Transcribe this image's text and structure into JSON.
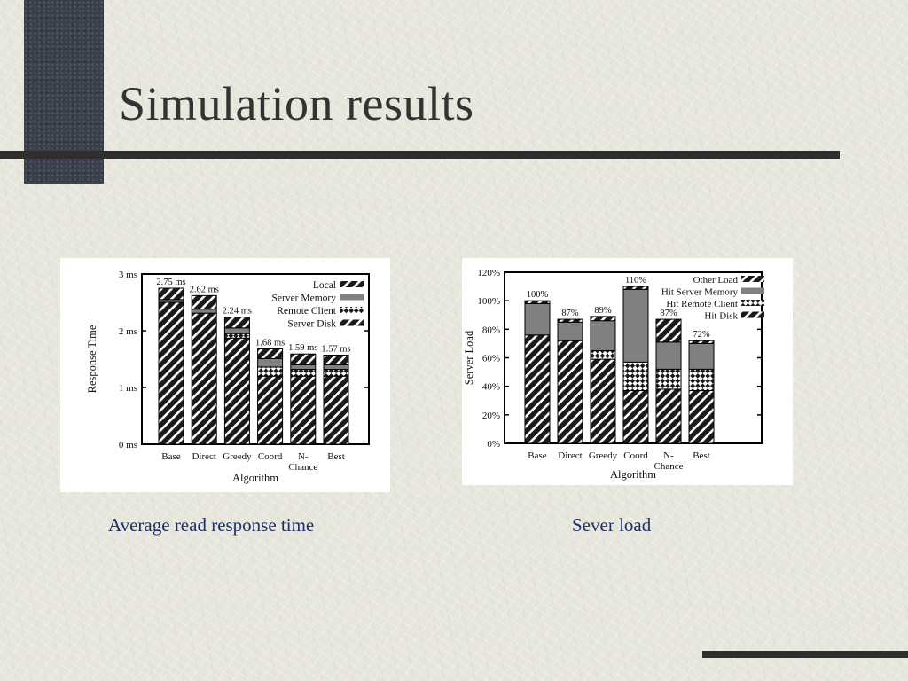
{
  "slide": {
    "title": "Simulation results",
    "caption_left": "Average read response time",
    "caption_right": "Sever load"
  },
  "chart_data": [
    {
      "type": "bar",
      "stacked": true,
      "ylabel": "Response Time",
      "xlabel": "Algorithm",
      "ylim": [
        0,
        3
      ],
      "yticks": [
        {
          "value": 0,
          "label": "0 ms"
        },
        {
          "value": 1,
          "label": "1 ms"
        },
        {
          "value": 2,
          "label": "2 ms"
        },
        {
          "value": 3,
          "label": "3 ms"
        }
      ],
      "categories": [
        "Base",
        "Direct",
        "Greedy",
        "Coord",
        "N-\nChance",
        "Best"
      ],
      "totals_labels": [
        "2.75 ms",
        "2.62 ms",
        "2.24 ms",
        "1.68 ms",
        "1.59 ms",
        "1.57 ms"
      ],
      "legend_position": "top-right",
      "series": [
        {
          "name": "Server Disk",
          "pattern": "hatch",
          "values": [
            2.5,
            2.31,
            1.87,
            1.2,
            1.2,
            1.2
          ]
        },
        {
          "name": "Remote Client",
          "pattern": "checker",
          "values": [
            0.0,
            0.0,
            0.08,
            0.16,
            0.12,
            0.12
          ]
        },
        {
          "name": "Server Memory",
          "pattern": "gray",
          "values": [
            0.05,
            0.07,
            0.1,
            0.15,
            0.08,
            0.08
          ]
        },
        {
          "name": "Local",
          "pattern": "hatch",
          "values": [
            0.2,
            0.24,
            0.19,
            0.17,
            0.19,
            0.17
          ]
        }
      ],
      "legend": [
        "Local",
        "Server Memory",
        "Remote Client",
        "Server Disk"
      ]
    },
    {
      "type": "bar",
      "stacked": true,
      "ylabel": "Server Load",
      "xlabel": "Algorithm",
      "ylim": [
        0,
        120
      ],
      "yticks": [
        {
          "value": 0,
          "label": "0%"
        },
        {
          "value": 20,
          "label": "20%"
        },
        {
          "value": 40,
          "label": "40%"
        },
        {
          "value": 60,
          "label": "60%"
        },
        {
          "value": 80,
          "label": "80%"
        },
        {
          "value": 100,
          "label": "100%"
        },
        {
          "value": 120,
          "label": "120%"
        }
      ],
      "categories": [
        "Base",
        "Direct",
        "Greedy",
        "Coord",
        "N-\nChance",
        "Best"
      ],
      "totals_labels": [
        "100%",
        "87%",
        "89%",
        "110%",
        "87%",
        "72%"
      ],
      "legend_position": "top-right",
      "series": [
        {
          "name": "Hit Disk",
          "pattern": "hatch",
          "values": [
            76,
            72,
            59,
            37,
            38,
            37
          ]
        },
        {
          "name": "Hit Remote Client",
          "pattern": "checker",
          "values": [
            0,
            0,
            6,
            20,
            14,
            15
          ]
        },
        {
          "name": "Hit Server Memory",
          "pattern": "gray",
          "values": [
            22,
            13,
            21,
            51,
            19,
            18
          ]
        },
        {
          "name": "Other Load",
          "pattern": "hatch",
          "values": [
            2,
            2,
            3,
            2,
            16,
            2
          ]
        }
      ],
      "legend": [
        "Other Load",
        "Hit Server Memory",
        "Hit Remote Client",
        "Hit Disk"
      ]
    }
  ]
}
